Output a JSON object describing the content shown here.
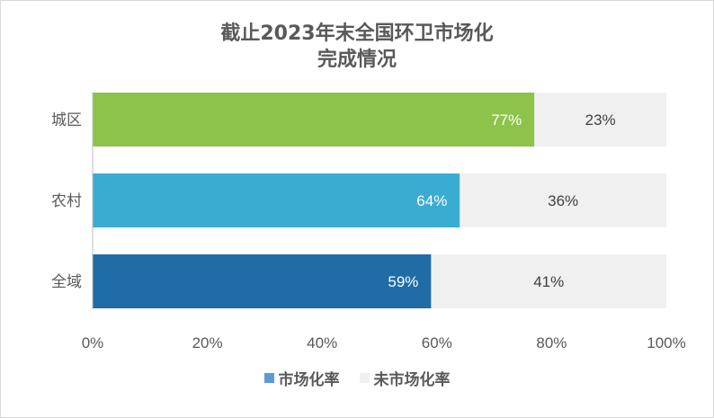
{
  "colors": {
    "sugar_filled": [
      "#8dc34a",
      "#3aacd2",
      "#1f6ca6"
    ],
    "remainder": "#f0f0f0",
    "axis_text": "#595959",
    "legend_swatch_1": "#5b9bd5",
    "legend_swatch_2": "#f0f0f0"
  },
  "chart_data": {
    "type": "bar",
    "orientation": "horizontal",
    "stacked": true,
    "percent": true,
    "title_lines": [
      "截止2023年末全国环卫市场化",
      "完成情况"
    ],
    "categories": [
      "城区",
      "农村",
      "全域"
    ],
    "series": [
      {
        "name": "市场化率",
        "values": [
          77,
          64,
          59
        ],
        "labels": [
          "77%",
          "64%",
          "59%"
        ]
      },
      {
        "name": "未市场化率",
        "values": [
          23,
          36,
          41
        ],
        "labels": [
          "23%",
          "36%",
          "41%"
        ]
      }
    ],
    "xlim": [
      0,
      100
    ],
    "xticks": [
      0,
      20,
      40,
      60,
      80,
      100
    ],
    "xtick_labels": [
      "0%",
      "20%",
      "40%",
      "60%",
      "80%",
      "100%"
    ],
    "grid": false,
    "legend_position": "bottom"
  }
}
